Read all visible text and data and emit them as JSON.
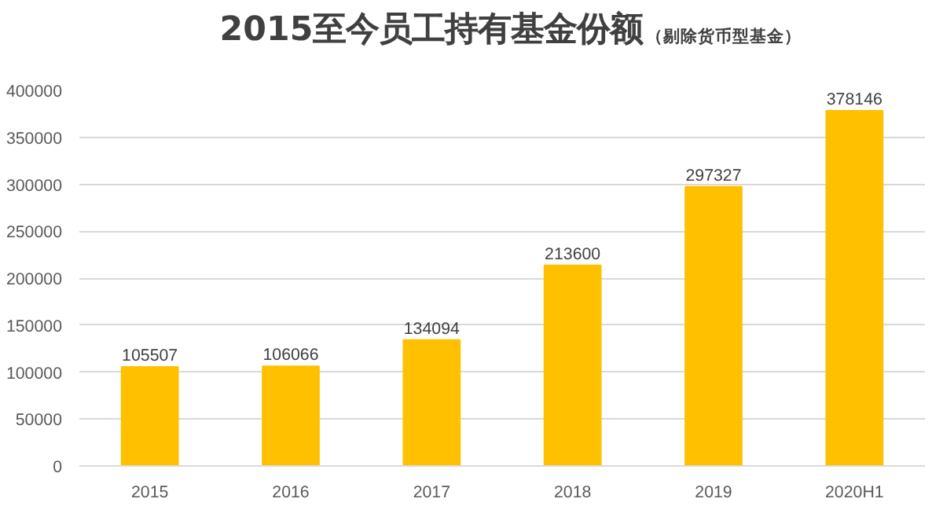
{
  "chart_data": {
    "type": "bar",
    "title": "2015至今员工持有基金份额",
    "subtitle": "（剔除货币型基金）",
    "categories": [
      "2015",
      "2016",
      "2017",
      "2018",
      "2019",
      "2020H1"
    ],
    "values": [
      105507,
      106066,
      134094,
      213600,
      297327,
      378146
    ],
    "color": "#ffc000",
    "ylim": [
      0,
      400000
    ],
    "yticks": [
      0,
      50000,
      100000,
      150000,
      200000,
      250000,
      300000,
      350000,
      400000
    ],
    "grid": "y",
    "data_labels": true
  }
}
